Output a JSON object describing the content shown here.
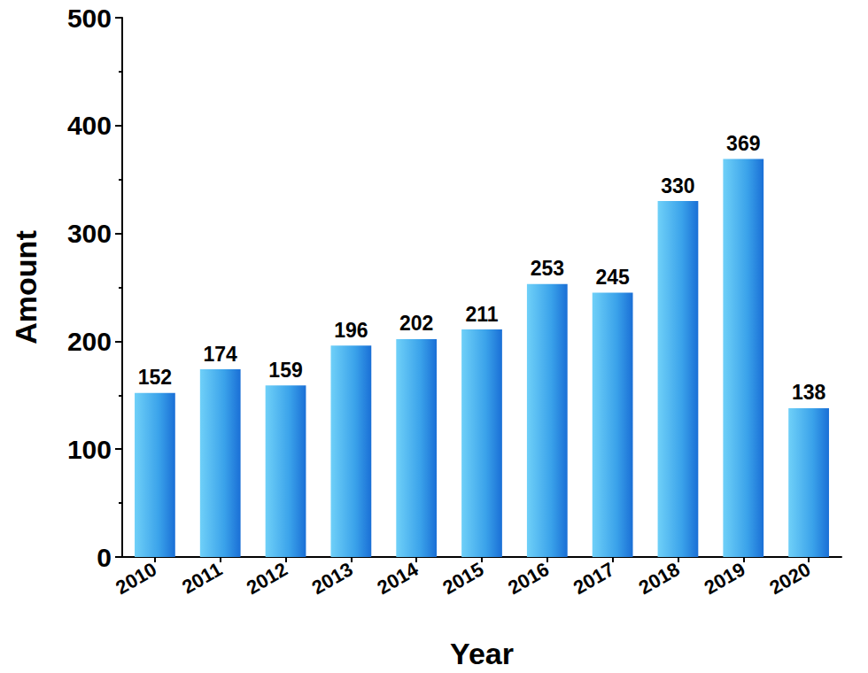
{
  "chart_data": {
    "type": "bar",
    "x_label": "Year",
    "y_label": "Amount",
    "categories": [
      "2010",
      "2011",
      "2012",
      "2013",
      "2014",
      "2015",
      "2016",
      "2017",
      "2018",
      "2019",
      "2020"
    ],
    "values": [
      152,
      174,
      159,
      196,
      202,
      211,
      253,
      245,
      330,
      369,
      138
    ],
    "color": "#1a6fd6",
    "ylim": [
      0,
      500
    ],
    "yticks": [
      0,
      100,
      200,
      300,
      400,
      500
    ],
    "grid": false,
    "data_labels": true
  }
}
